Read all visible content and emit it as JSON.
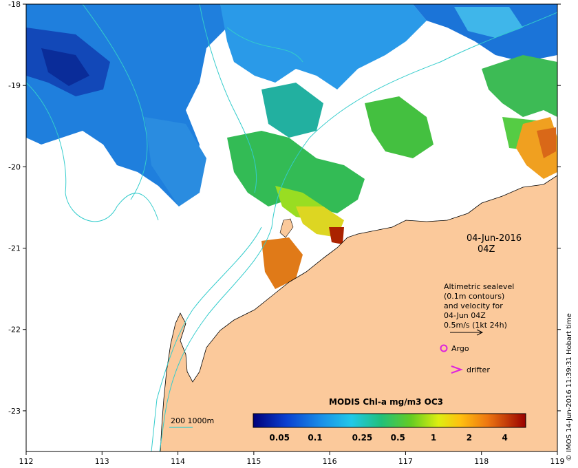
{
  "map": {
    "date_label": "04-Jun-2016",
    "time_label": "04Z",
    "credit": "© IMOS 14-Jun-2016 11:39:31 Hobart time",
    "lon_ticks": [
      "112",
      "113",
      "114",
      "115",
      "116",
      "117",
      "118",
      "119"
    ],
    "lat_ticks": [
      "-18",
      "-19",
      "-20",
      "-21",
      "-22",
      "-23"
    ],
    "lon_range": [
      112,
      119
    ],
    "lat_range": [
      -23.5,
      -18
    ],
    "altimetry_note": [
      "Altimetric sealevel",
      "(0.1m contours)",
      "and velocity for",
      "04-Jun 04Z",
      "0.5m/s (1kt 24h)"
    ],
    "legend_argo": "Argo",
    "legend_drifter": "drifter",
    "bathymetry_legend": "200  1000m",
    "colorbar_title": "MODIS Chl-a mg/m3 OC3",
    "colorbar_ticks": [
      "0.05",
      "0.1",
      "0.25",
      "0.5",
      "1",
      "2",
      "4"
    ],
    "colors": {
      "land": "#fbc99b",
      "contour": "#33cccc",
      "argo": "#dd22dd"
    }
  }
}
